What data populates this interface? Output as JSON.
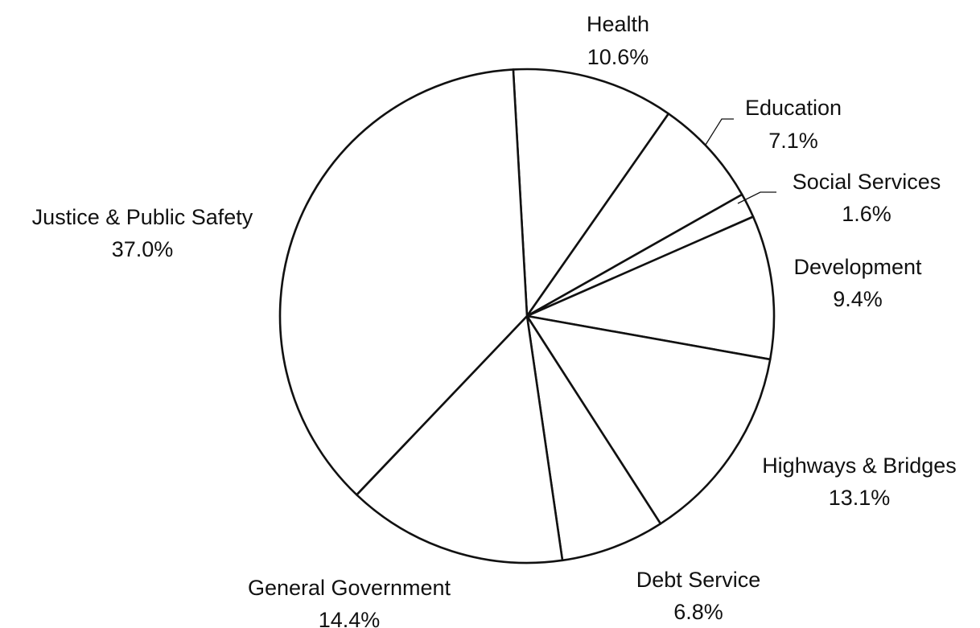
{
  "chart_data": {
    "type": "pie",
    "title": "",
    "start_angle_deg": -3.2,
    "direction": "clockwise",
    "slices": [
      {
        "label": "Health",
        "value": 10.6,
        "value_label": "10.6%"
      },
      {
        "label": "Education",
        "value": 7.1,
        "value_label": "7.1%"
      },
      {
        "label": "Social Services",
        "value": 1.6,
        "value_label": "1.6%"
      },
      {
        "label": "Development",
        "value": 9.4,
        "value_label": "9.4%"
      },
      {
        "label": "Highways & Bridges",
        "value": 13.1,
        "value_label": "13.1%"
      },
      {
        "label": "Debt Service",
        "value": 6.8,
        "value_label": "6.8%"
      },
      {
        "label": "General Government",
        "value": 14.4,
        "value_label": "14.4%"
      },
      {
        "label": "Justice & Public Safety",
        "value": 37.0,
        "value_label": "37.0%"
      }
    ],
    "legend": "none",
    "slice_fill": "#ffffff",
    "outline_color": "#111111"
  }
}
